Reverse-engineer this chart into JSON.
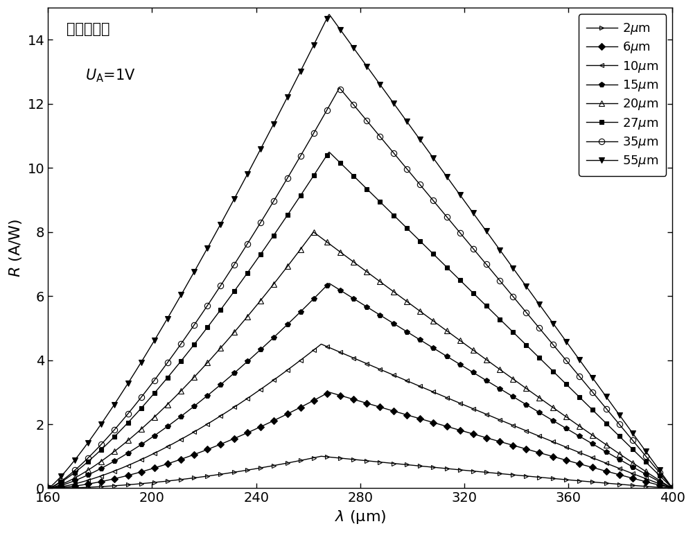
{
  "xlim": [
    160,
    400
  ],
  "ylim": [
    0,
    15
  ],
  "xticks": [
    160,
    200,
    240,
    280,
    320,
    360,
    400
  ],
  "yticks": [
    0,
    2,
    4,
    6,
    8,
    10,
    12,
    14
  ],
  "series": [
    {
      "label": "2$\\mu$m",
      "peak": 1.0,
      "peak_x": 265,
      "rise_exp": 1.8,
      "fall_exp": 1.1,
      "marker": ">",
      "fillstyle": "none",
      "color": "black",
      "markersize": 5,
      "markevery": 5
    },
    {
      "label": "6$\\mu$m",
      "peak": 3.0,
      "peak_x": 268,
      "rise_exp": 1.6,
      "fall_exp": 1.05,
      "marker": "D",
      "fillstyle": "full",
      "color": "black",
      "markersize": 5,
      "markevery": 5
    },
    {
      "label": "10$\\mu$m",
      "peak": 4.5,
      "peak_x": 265,
      "rise_exp": 1.5,
      "fall_exp": 1.05,
      "marker": "<",
      "fillstyle": "none",
      "color": "black",
      "markersize": 5,
      "markevery": 5
    },
    {
      "label": "15$\\mu$m",
      "peak": 6.4,
      "peak_x": 268,
      "rise_exp": 1.4,
      "fall_exp": 1.05,
      "marker": "p",
      "fillstyle": "full",
      "color": "black",
      "markersize": 6,
      "markevery": 5
    },
    {
      "label": "20$\\mu$m",
      "peak": 8.0,
      "peak_x": 262,
      "rise_exp": 1.4,
      "fall_exp": 1.05,
      "marker": "^",
      "fillstyle": "none",
      "color": "black",
      "markersize": 6,
      "markevery": 5
    },
    {
      "label": "27$\\mu$m",
      "peak": 10.5,
      "peak_x": 268,
      "rise_exp": 1.3,
      "fall_exp": 1.0,
      "marker": "s",
      "fillstyle": "full",
      "color": "black",
      "markersize": 5,
      "markevery": 5
    },
    {
      "label": "35$\\mu$m",
      "peak": 12.5,
      "peak_x": 272,
      "rise_exp": 1.3,
      "fall_exp": 1.0,
      "marker": "o",
      "fillstyle": "none",
      "color": "black",
      "markersize": 6,
      "markevery": 5
    },
    {
      "label": "55$\\mu$m",
      "peak": 14.8,
      "peak_x": 268,
      "rise_exp": 1.2,
      "fall_exp": 1.0,
      "marker": "v",
      "fillstyle": "full",
      "color": "black",
      "markersize": 6,
      "markevery": 5
    }
  ],
  "background_color": "white"
}
